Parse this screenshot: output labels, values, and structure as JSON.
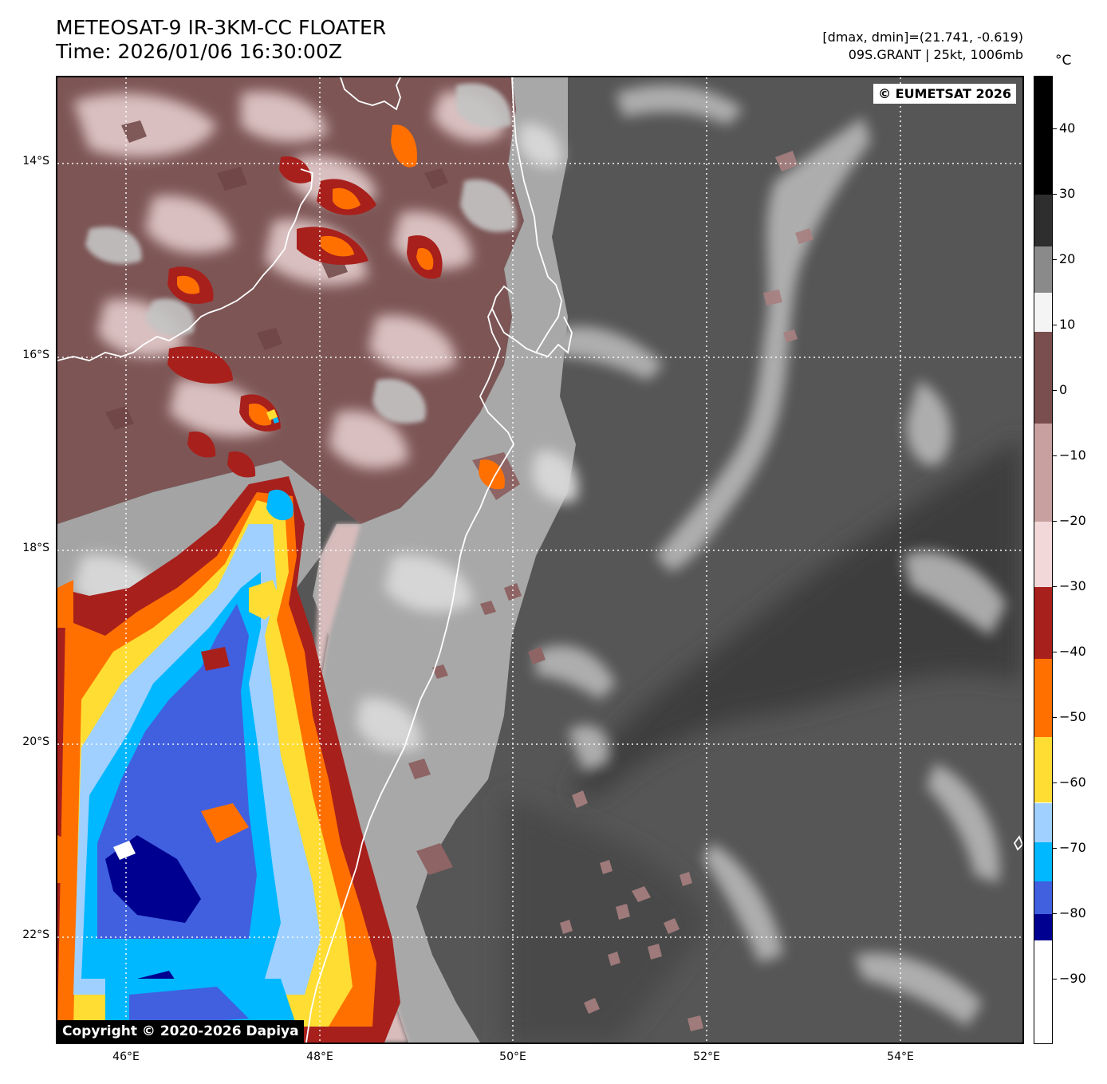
{
  "header": {
    "title_line1": "METEOSAT-9 IR-3KM-CC FLOATER",
    "title_line2": "Time: 2026/01/06 16:30:00Z",
    "info_line1": "[dmax, dmin]=(21.741, -0.619)",
    "info_line2": "09S.GRANT | 25kt, 1006mb"
  },
  "map": {
    "copyright_top": "© EUMETSAT 2026",
    "copyright_bottom": "Copyright © 2020-2026 Dapiya",
    "lat_labels": [
      "14°S",
      "16°S",
      "18°S",
      "20°S",
      "22°S"
    ],
    "lon_labels": [
      "46°E",
      "48°E",
      "50°E",
      "52°E",
      "54°E"
    ]
  },
  "colorbar": {
    "unit": "°C",
    "tick_labels": [
      "40",
      "30",
      "20",
      "10",
      "0",
      "−10",
      "−20",
      "−30",
      "−40",
      "−50",
      "−60",
      "−70",
      "−80",
      "−90"
    ],
    "segments": [
      {
        "from": 48,
        "to": 30,
        "color": "#000000"
      },
      {
        "from": 30,
        "to": 22,
        "color": "#2e2e2e"
      },
      {
        "from": 22,
        "to": 15,
        "color": "#8a8a8a"
      },
      {
        "from": 15,
        "to": 9,
        "color": "#f4f4f4"
      },
      {
        "from": 9,
        "to": -5,
        "color": "#7a4e4e"
      },
      {
        "from": -5,
        "to": -20,
        "color": "#c8a0a0"
      },
      {
        "from": -20,
        "to": -30,
        "color": "#f2d8d8"
      },
      {
        "from": -30,
        "to": -41,
        "color": "#a8201c"
      },
      {
        "from": -41,
        "to": -53,
        "color": "#ff7000"
      },
      {
        "from": -53,
        "to": -63,
        "color": "#ffdd33"
      },
      {
        "from": -63,
        "to": -69,
        "color": "#9fd0ff"
      },
      {
        "from": -69,
        "to": -75,
        "color": "#00b8ff"
      },
      {
        "from": -75,
        "to": -80,
        "color": "#4060e0"
      },
      {
        "from": -80,
        "to": -84,
        "color": "#000090"
      },
      {
        "from": -84,
        "to": -100,
        "color": "#ffffff"
      }
    ],
    "range": [
      48,
      -100
    ]
  },
  "colors": {
    "ocean": "#545454",
    "land_warm": "#7d5555",
    "land_cool": "#d8bcbc",
    "cloud_grey": "#b8b8b8",
    "coast": "#ffffff",
    "grid": "#ffffff"
  }
}
